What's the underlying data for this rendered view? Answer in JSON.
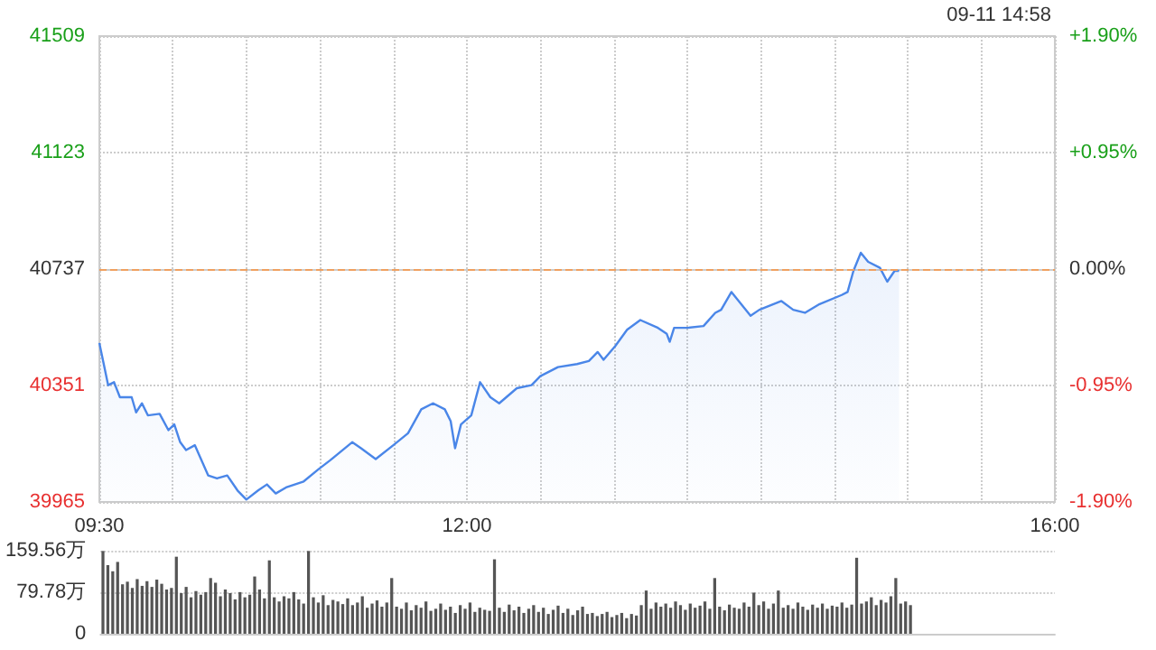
{
  "chart_data": [
    {
      "type": "area",
      "annotations": [
        "09-11 14:58"
      ],
      "x": [
        9.5,
        9.53,
        9.56,
        9.6,
        9.64,
        9.72,
        9.75,
        9.79,
        9.83,
        9.91,
        9.97,
        10.01,
        10.05,
        10.09,
        10.15,
        10.24,
        10.3,
        10.37,
        10.44,
        10.5,
        10.58,
        10.64,
        10.7,
        10.77,
        10.83,
        10.89,
        10.99,
        11.07,
        11.22,
        11.28,
        11.38,
        11.5,
        11.6,
        11.69,
        11.77,
        11.85,
        11.89,
        11.92,
        11.96,
        12.03,
        12.09,
        12.16,
        12.22,
        12.34,
        12.44,
        12.5,
        12.62,
        12.75,
        12.83,
        12.89,
        12.93,
        13.01,
        13.09,
        13.18,
        13.3,
        13.36,
        13.38,
        13.41,
        13.5,
        13.61,
        13.69,
        13.73,
        13.8,
        13.93,
        13.99,
        14.14,
        14.22,
        14.3,
        14.4,
        14.55,
        14.59,
        14.63,
        14.68,
        14.73,
        14.81,
        14.86,
        14.91,
        14.94
      ],
      "series": [
        {
          "color": "#4a86e8",
          "values": [
            40492,
            40422,
            40352,
            40362,
            40312,
            40312,
            40262,
            40292,
            40252,
            40257,
            40203,
            40222,
            40163,
            40137,
            40153,
            40053,
            40043,
            40053,
            40003,
            39973,
            40003,
            40023,
            39993,
            40013,
            40023,
            40033,
            40073,
            40103,
            40163,
            40143,
            40107,
            40153,
            40193,
            40272,
            40292,
            40272,
            40233,
            40143,
            40222,
            40252,
            40362,
            40312,
            40292,
            40342,
            40352,
            40382,
            40412,
            40422,
            40432,
            40462,
            40436,
            40482,
            40536,
            40568,
            40542,
            40522,
            40496,
            40542,
            40542,
            40548,
            40592,
            40602,
            40661,
            40582,
            40602,
            40631,
            40602,
            40592,
            40621,
            40651,
            40661,
            40731,
            40791,
            40761,
            40741,
            40695,
            40731,
            40731
          ]
        }
      ],
      "xlim": [
        9.5,
        16
      ],
      "xticks": [
        {
          "value": 9.5,
          "label": "09:30"
        },
        {
          "value": 10,
          "label": null
        },
        {
          "value": 10.5,
          "label": null
        },
        {
          "value": 11,
          "label": null
        },
        {
          "value": 11.5,
          "label": null
        },
        {
          "value": 12,
          "label": "12:00"
        },
        {
          "value": 12.5,
          "label": null
        },
        {
          "value": 13,
          "label": null
        },
        {
          "value": 13.5,
          "label": null
        },
        {
          "value": 14,
          "label": null
        },
        {
          "value": 14.5,
          "label": null
        },
        {
          "value": 15,
          "label": null
        },
        {
          "value": 15.5,
          "label": null
        },
        {
          "value": 16,
          "label": "16:00"
        }
      ],
      "ylim": [
        39965,
        41509
      ],
      "yticks": [
        39965,
        40351,
        40737,
        41123,
        41509
      ],
      "y2lim": [
        -1.9,
        1.9
      ],
      "y2ticks": [
        {
          "value": -1.9,
          "label": "-1.90%"
        },
        {
          "value": -0.95,
          "label": "-0.95%"
        },
        {
          "value": 0,
          "label": "0.00%"
        },
        {
          "value": 0.95,
          "label": "+0.95%"
        },
        {
          "value": 1.9,
          "label": "+1.90%"
        }
      ],
      "ref_lines": [
        {
          "axis": "y",
          "value": 40737,
          "color": "#f0a060",
          "line_style": "dashed"
        }
      ],
      "grid": true,
      "marker": "none",
      "line_style": "solid"
    },
    {
      "type": "bar",
      "categories": [
        null,
        null,
        null,
        null,
        null,
        null,
        null,
        null,
        null,
        null,
        null,
        null,
        null,
        null,
        null,
        null,
        null,
        null,
        null,
        null,
        null,
        null,
        null,
        null,
        null,
        null,
        null,
        null,
        null,
        null,
        null,
        null,
        null,
        null,
        null,
        null,
        null,
        null,
        null,
        null,
        null,
        null,
        null,
        null,
        null,
        null,
        null,
        null,
        null,
        null,
        null,
        null,
        null,
        null,
        null,
        null,
        null,
        null,
        null,
        null,
        null,
        null,
        null,
        null,
        null,
        null,
        null,
        null,
        null,
        null,
        null,
        null,
        null,
        null,
        null,
        null,
        null,
        null,
        null,
        null,
        null,
        null,
        null,
        null,
        null,
        null,
        null,
        null,
        null,
        null,
        null,
        null,
        null,
        null,
        null,
        null,
        null,
        null,
        null,
        null,
        null,
        null,
        null,
        null,
        null,
        null,
        null,
        null,
        null,
        null,
        null,
        null,
        null,
        null,
        null,
        null,
        null,
        null,
        null,
        null,
        null,
        null,
        null,
        null,
        null,
        null,
        null,
        null,
        null,
        null,
        null,
        null,
        null,
        null,
        null,
        null,
        null,
        null,
        null,
        null,
        null,
        null,
        null,
        null,
        null,
        null,
        null,
        null,
        null,
        null,
        null,
        null,
        null,
        null,
        null,
        null,
        null,
        null,
        null,
        null,
        null,
        null,
        null,
        null,
        null,
        null,
        null,
        null,
        null,
        null,
        null,
        null,
        null,
        null,
        null,
        null,
        null,
        null,
        null,
        null,
        null,
        null,
        null,
        null,
        null,
        null,
        null,
        null,
        null,
        null,
        null,
        null,
        null,
        null,
        null
      ],
      "values": [
        159,
        132,
        120,
        138,
        95,
        100,
        88,
        105,
        92,
        101,
        90,
        104,
        96,
        85,
        88,
        148,
        78,
        90,
        70,
        82,
        75,
        80,
        107,
        98,
        72,
        85,
        78,
        66,
        80,
        70,
        75,
        110,
        85,
        68,
        141,
        70,
        62,
        72,
        68,
        80,
        66,
        58,
        159,
        70,
        60,
        74,
        55,
        65,
        62,
        57,
        68,
        55,
        60,
        72,
        50,
        58,
        64,
        52,
        60,
        107,
        52,
        48,
        60,
        45,
        55,
        50,
        62,
        44,
        48,
        58,
        46,
        52,
        40,
        55,
        48,
        60,
        42,
        50,
        46,
        44,
        143,
        50,
        42,
        56,
        45,
        52,
        40,
        48,
        55,
        42,
        50,
        38,
        46,
        54,
        40,
        48,
        36,
        45,
        52,
        38,
        40,
        34,
        38,
        42,
        32,
        36,
        40,
        30,
        38,
        35,
        55,
        83,
        48,
        60,
        52,
        58,
        50,
        62,
        55,
        46,
        58,
        50,
        54,
        62,
        48,
        107,
        52,
        45,
        56,
        50,
        48,
        60,
        52,
        79,
        55,
        62,
        48,
        58,
        83,
        50,
        55,
        48,
        60,
        52,
        46,
        56,
        50,
        58,
        48,
        54,
        52,
        60,
        50,
        56,
        146,
        58,
        62,
        70,
        55,
        65,
        60,
        72,
        107,
        58,
        62,
        55,
        null,
        null,
        null,
        null,
        null,
        null,
        null,
        null,
        null,
        null,
        null,
        null,
        null,
        null,
        null,
        null,
        null,
        null,
        null,
        null,
        null,
        null,
        null,
        null,
        null,
        null,
        null,
        null,
        null
      ],
      "color": "#555555",
      "ylim": [
        0,
        159.56
      ],
      "yticks": [
        0,
        {
          "value": 79.78,
          "label": "79.78万"
        },
        {
          "value": 159.56,
          "label": "159.56万"
        }
      ],
      "tick_labels": "y",
      "grid": "y"
    }
  ]
}
